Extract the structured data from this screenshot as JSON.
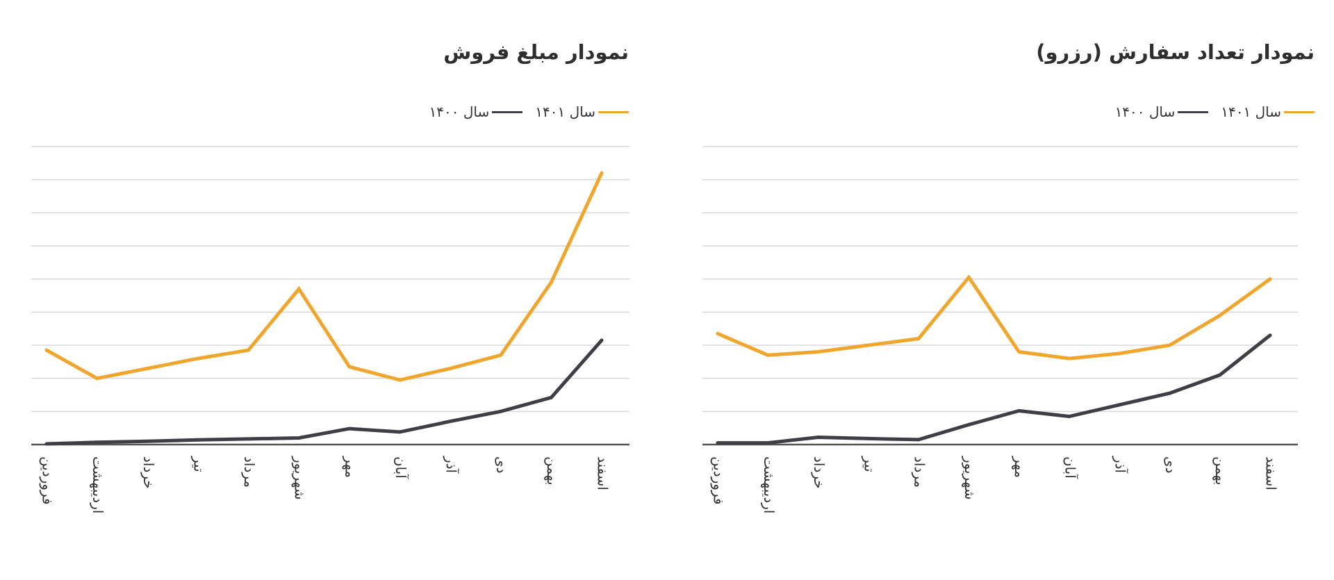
{
  "colors": {
    "series_1401": "#F0A52C",
    "series_1400": "#3E3F45",
    "grid": "#D9D9D9",
    "axis": "#555555"
  },
  "chart_data": [
    {
      "type": "line",
      "title": "نمودار مبلغ فروش",
      "xlabel": "",
      "ylabel": "",
      "ylim": [
        0,
        9
      ],
      "grid": true,
      "legend_position": "top-right",
      "categories": [
        "فروردین",
        "اردیبهشت",
        "خرداد",
        "تیر",
        "مرداد",
        "شهریور",
        "مهر",
        "آبان",
        "آذر",
        "دی",
        "بهمن",
        "اسفند"
      ],
      "series": [
        {
          "name": "سال ۱۴۰۱",
          "color": "#F0A52C",
          "values": [
            2.85,
            2.0,
            2.3,
            2.6,
            2.85,
            4.7,
            2.35,
            1.95,
            2.3,
            2.7,
            4.9,
            8.2
          ]
        },
        {
          "name": "سال ۱۴۰۰",
          "color": "#3E3F45",
          "values": [
            0.02,
            0.07,
            0.1,
            0.14,
            0.17,
            0.2,
            0.48,
            0.38,
            0.7,
            1.0,
            1.42,
            3.15
          ]
        }
      ]
    },
    {
      "type": "line",
      "title": "نمودار تعداد سفارش (رزرو)",
      "xlabel": "",
      "ylabel": "",
      "ylim": [
        0,
        9
      ],
      "grid": true,
      "legend_position": "top-right",
      "categories": [
        "فروردین",
        "اردیبهشت",
        "خرداد",
        "تیر",
        "مرداد",
        "شهریور",
        "مهر",
        "آبان",
        "آذر",
        "دی",
        "بهمن",
        "اسفند"
      ],
      "series": [
        {
          "name": "سال ۱۴۰۱",
          "color": "#F0A52C",
          "values": [
            3.35,
            2.7,
            2.8,
            3.0,
            3.2,
            5.05,
            2.8,
            2.6,
            2.75,
            3.0,
            3.9,
            5.0
          ]
        },
        {
          "name": "سال ۱۴۰۰",
          "color": "#3E3F45",
          "values": [
            0.05,
            0.05,
            0.22,
            0.18,
            0.15,
            0.6,
            1.02,
            0.85,
            1.2,
            1.55,
            2.1,
            3.3
          ]
        }
      ]
    }
  ]
}
